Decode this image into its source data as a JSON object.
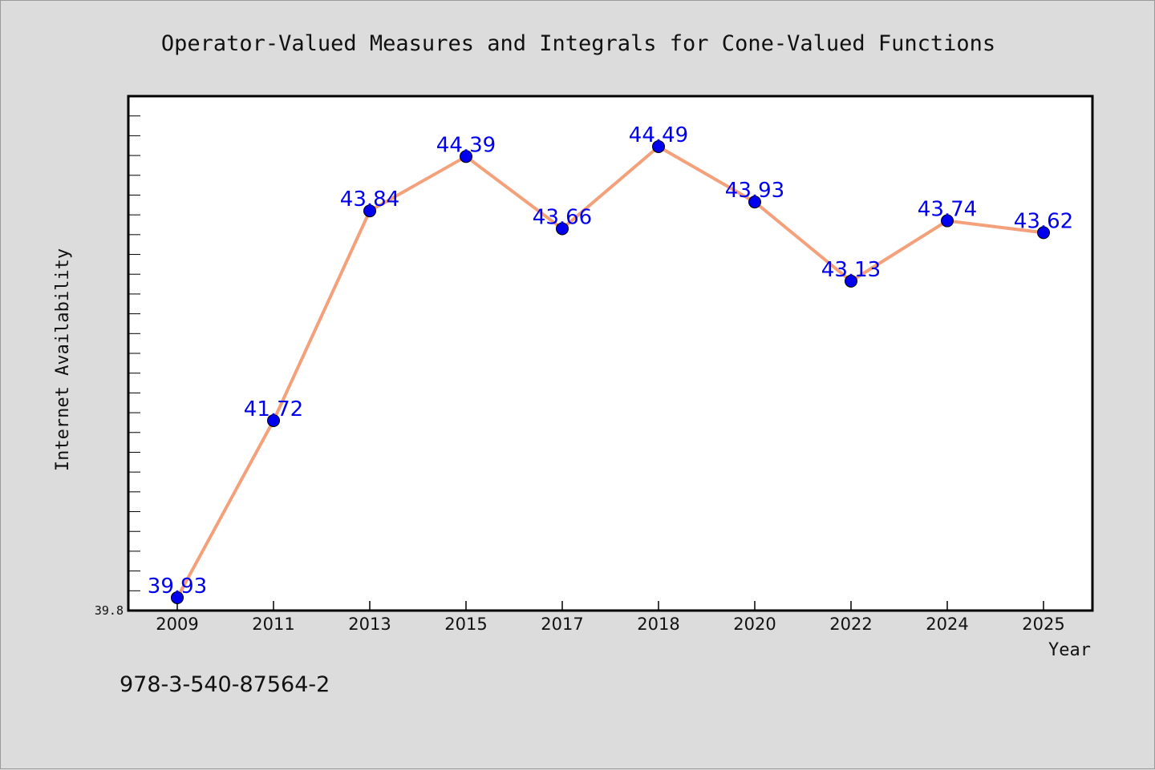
{
  "page": {
    "footer_text": "978-3-540-87564-2"
  },
  "colors": {
    "background": "#dcdcdc",
    "plot_background": "#ffffff",
    "line": "#f4a07a",
    "marker": "#0000ee",
    "data_label": "#0000ee"
  },
  "chart_data": {
    "type": "line",
    "title": "Operator-Valued Measures and Integrals for Cone-Valued Functions",
    "xlabel": "Year",
    "ylabel": "Internet Availability",
    "categories": [
      "2009",
      "2011",
      "2013",
      "2015",
      "2017",
      "2018",
      "2020",
      "2022",
      "2024",
      "2025"
    ],
    "series": [
      {
        "values": [
          39.93,
          41.72,
          43.84,
          44.39,
          43.66,
          44.49,
          43.93,
          43.13,
          43.74,
          43.62
        ],
        "labels": [
          "39.93",
          "41.72",
          "43.84",
          "44.39",
          "43.66",
          "44.49",
          "43.93",
          "43.13",
          "43.74",
          "43.62"
        ]
      }
    ],
    "ylim": [
      39.8,
      45.0
    ],
    "y_min_label": "39.8",
    "grid": false,
    "legend": false,
    "marker": "circle"
  }
}
